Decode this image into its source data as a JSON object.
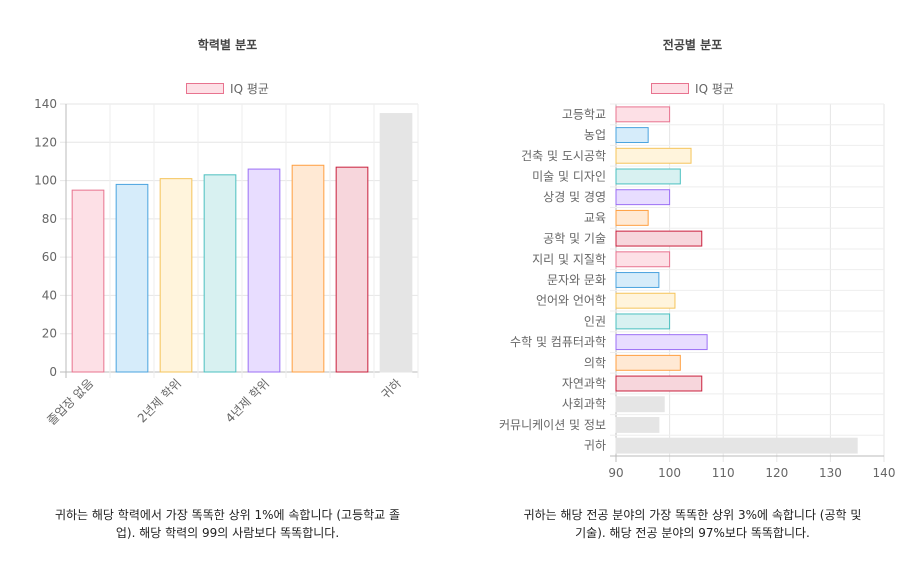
{
  "chart_data": [
    {
      "type": "bar",
      "title": "학력별 분포",
      "legend": "IQ 평균",
      "categories": [
        "졸업장 없음",
        "",
        "2년제 학위",
        "",
        "4년제 학위",
        "",
        "",
        "귀하"
      ],
      "values": [
        95,
        98,
        101,
        103,
        106,
        108,
        107,
        135
      ],
      "ylim": [
        0,
        140
      ],
      "yticks": [
        0,
        20,
        40,
        60,
        80,
        100,
        120,
        140
      ],
      "colors": [
        {
          "fill": "#fde0e6",
          "stroke": "#e8738f"
        },
        {
          "fill": "#d6ecfa",
          "stroke": "#4aa3df"
        },
        {
          "fill": "#fff4dc",
          "stroke": "#f5c45a"
        },
        {
          "fill": "#d8f1f1",
          "stroke": "#4bc0c0"
        },
        {
          "fill": "#e8ddff",
          "stroke": "#9b6ff5"
        },
        {
          "fill": "#ffe9d4",
          "stroke": "#ff9f40"
        },
        {
          "fill": "#f7d6dc",
          "stroke": "#c9203d"
        },
        {
          "fill": "#e5e5e5",
          "stroke": "#e5e5e5"
        }
      ],
      "caption": "귀하는 해당 학력에서 가장 똑똑한 상위 1%에 속합니다 (고등학교 졸업). 해당 학력의 99의 사람보다 똑똑합니다."
    },
    {
      "type": "bar",
      "orientation": "horizontal",
      "title": "전공별 분포",
      "legend": "IQ 평균",
      "categories": [
        "고등학교",
        "농업",
        "건축 및 도시공학",
        "미술 및 디자인",
        "상경 및 경영",
        "교육",
        "공학 및 기술",
        "지리 및 지질학",
        "문자와 문화",
        "언어와 언어학",
        "인권",
        "수학 및 컴퓨터과학",
        "의학",
        "자연과학",
        "사회과학",
        "커뮤니케이션 및 정보",
        "귀하"
      ],
      "values": [
        100,
        96,
        104,
        102,
        100,
        96,
        106,
        100,
        98,
        101,
        100,
        107,
        102,
        106,
        99,
        98,
        135
      ],
      "xlim": [
        90,
        140
      ],
      "xticks": [
        90,
        100,
        110,
        120,
        130,
        140
      ],
      "colors": [
        {
          "fill": "#fde0e6",
          "stroke": "#e8738f"
        },
        {
          "fill": "#d6ecfa",
          "stroke": "#4aa3df"
        },
        {
          "fill": "#fff4dc",
          "stroke": "#f5c45a"
        },
        {
          "fill": "#d8f1f1",
          "stroke": "#4bc0c0"
        },
        {
          "fill": "#e8ddff",
          "stroke": "#9b6ff5"
        },
        {
          "fill": "#ffe9d4",
          "stroke": "#ff9f40"
        },
        {
          "fill": "#f7d6dc",
          "stroke": "#c9203d"
        },
        {
          "fill": "#fde0e6",
          "stroke": "#e8738f"
        },
        {
          "fill": "#d6ecfa",
          "stroke": "#4aa3df"
        },
        {
          "fill": "#fff4dc",
          "stroke": "#f5c45a"
        },
        {
          "fill": "#d8f1f1",
          "stroke": "#4bc0c0"
        },
        {
          "fill": "#e8ddff",
          "stroke": "#9b6ff5"
        },
        {
          "fill": "#ffe9d4",
          "stroke": "#ff9f40"
        },
        {
          "fill": "#f7d6dc",
          "stroke": "#c9203d"
        },
        {
          "fill": "#e5e5e5",
          "stroke": "#e5e5e5"
        },
        {
          "fill": "#e5e5e5",
          "stroke": "#e5e5e5"
        },
        {
          "fill": "#e5e5e5",
          "stroke": "#e5e5e5"
        }
      ],
      "caption": "귀하는 해당 전공 분야의 가장 똑똑한 상위 3%에 속합니다 (공학 및 기술). 해당 전공 분야의 97%보다 똑똑합니다."
    }
  ]
}
